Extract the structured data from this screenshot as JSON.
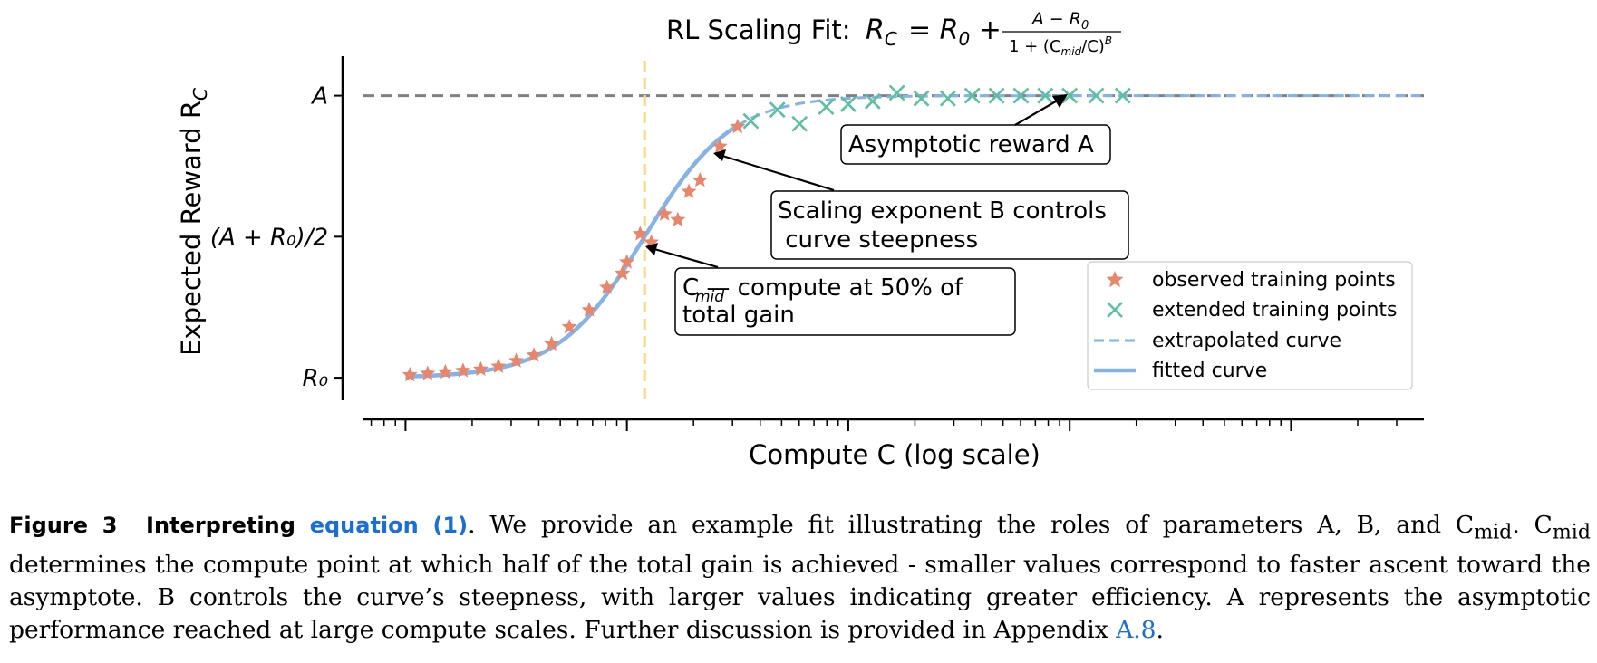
{
  "chart_data": {
    "type": "line",
    "title_prefix": "RL Scaling Fit: ",
    "title_formula": {
      "lhs": "R",
      "lhs_sub": "C",
      "rhs_start": "= R",
      "rhs_start_sub": "0",
      "rhs_plus": " + ",
      "numerator": "A − R",
      "numerator_sub": "0",
      "denominator": "1 + (C",
      "denominator_sub": "mid",
      "denominator_end": "/C)",
      "denominator_sup": "B"
    },
    "xlabel": "Compute  C  (log scale)",
    "ylabel": "Expected Reward  R",
    "ylabel_sub": "C",
    "y_ticks": [
      {
        "label": "A",
        "value": 1.0
      },
      {
        "label": "(A + R₀)/2",
        "value": 0.5
      },
      {
        "label": "R₀",
        "value": 0.0
      }
    ],
    "x_scale": "log",
    "x_major_ticks": [
      0,
      1,
      2,
      3,
      4
    ],
    "x_minor_per_decade": 8,
    "xlim": [
      -0.19,
      4.6
    ],
    "ylim": [
      -0.08,
      1.14
    ],
    "model": {
      "R0": 0.0,
      "A": 1.0,
      "B": 2.2,
      "log10_Cmid": 1.08
    },
    "fitted_range": [
      0.0,
      1.5
    ],
    "extrapolated_range": [
      1.5,
      4.6
    ],
    "cmid_line_x": 1.08,
    "asymptote_y": 1.0,
    "series": [
      {
        "name": "observed training points",
        "marker": "star",
        "color": "#e8866b",
        "points": [
          [
            0.02,
            0.01
          ],
          [
            0.1,
            0.015
          ],
          [
            0.18,
            0.02
          ],
          [
            0.26,
            0.025
          ],
          [
            0.34,
            0.03
          ],
          [
            0.42,
            0.04
          ],
          [
            0.5,
            0.06
          ],
          [
            0.58,
            0.08
          ],
          [
            0.66,
            0.12
          ],
          [
            0.74,
            0.18
          ],
          [
            0.83,
            0.24
          ],
          [
            0.91,
            0.32
          ],
          [
            0.98,
            0.37
          ],
          [
            1.0,
            0.41
          ],
          [
            1.06,
            0.51
          ],
          [
            1.11,
            0.48
          ],
          [
            1.17,
            0.58
          ],
          [
            1.23,
            0.56
          ],
          [
            1.28,
            0.66
          ],
          [
            1.33,
            0.7
          ],
          [
            1.42,
            0.82
          ],
          [
            1.5,
            0.89
          ]
        ]
      },
      {
        "name": "extended training points",
        "marker": "x",
        "color": "#5bbfa0",
        "points": [
          [
            1.56,
            0.91
          ],
          [
            1.68,
            0.95
          ],
          [
            1.78,
            0.9
          ],
          [
            1.9,
            0.96
          ],
          [
            2.0,
            0.97
          ],
          [
            2.11,
            0.98
          ],
          [
            2.22,
            1.01
          ],
          [
            2.33,
            0.99
          ],
          [
            2.45,
            0.99
          ],
          [
            2.56,
            1.0
          ],
          [
            2.67,
            1.0
          ],
          [
            2.78,
            1.0
          ],
          [
            2.89,
            1.0
          ],
          [
            3.0,
            1.0
          ],
          [
            3.12,
            1.0
          ],
          [
            3.24,
            1.0
          ]
        ]
      },
      {
        "name": "extrapolated curve",
        "style": "dashed",
        "color": "#86b2e6"
      },
      {
        "name": "fitted curve",
        "style": "solid",
        "color": "#86b2e6"
      }
    ],
    "annotations": [
      {
        "id": "asymptote",
        "text_lines": [
          "Asymptotic reward A"
        ],
        "target": [
          3.0,
          1.0
        ]
      },
      {
        "id": "steepness",
        "text_lines": [
          "Scaling exponent B controls",
          " curve steepness"
        ],
        "target": [
          1.4,
          0.8
        ]
      },
      {
        "id": "cmid",
        "text_lines": [
          "C — compute at 50% of",
          "total gain"
        ],
        "target": [
          1.1,
          0.5
        ]
      }
    ],
    "colors": {
      "asymptote_line": "#808080",
      "cmid_line": "#f5dc8c",
      "axis": "#000000"
    }
  },
  "caption": {
    "figure_label": "Figure 3",
    "lead": "Interpreting",
    "link_text": "equation (1)",
    "sentence_1": ". We provide an example fit illustrating the roles of parameters A, B, and C",
    "mid_sub": "mid",
    "sentence_2": ". C",
    "mid_sub_2": "mid",
    "body": " determines the compute point at which half of the total gain is achieved - smaller values correspond to faster ascent toward the asymptote. B controls the curve’s steepness, with larger values indicating greater efficiency. A represents the asymptotic performance reached at large compute scales. Further discussion is provided in Appendix ",
    "appendix_ref": "A.8",
    "end": "."
  }
}
